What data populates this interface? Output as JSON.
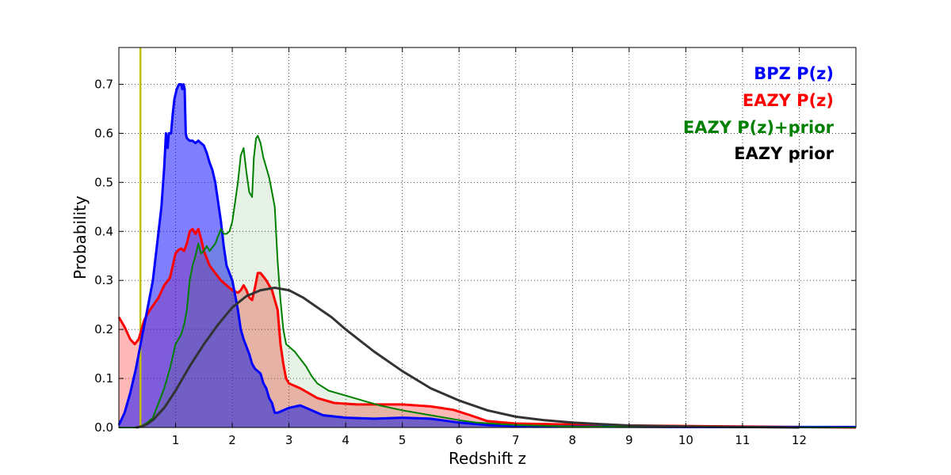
{
  "chart_data": {
    "type": "area",
    "title": "",
    "xlabel": "Redshift z",
    "ylabel": "Probability",
    "xlim": [
      0,
      13
    ],
    "ylim": [
      0,
      0.775
    ],
    "grid": true,
    "legend_position": "top-right",
    "x_ticks": [
      1,
      2,
      3,
      4,
      5,
      6,
      7,
      8,
      9,
      10,
      11,
      12
    ],
    "x_tick_labels": [
      "1",
      "2",
      "3",
      "4",
      "5",
      "6",
      "7",
      "8",
      "9",
      "10",
      "11",
      "12"
    ],
    "y_ticks": [
      0.0,
      0.1,
      0.2,
      0.3,
      0.4,
      0.5,
      0.6,
      0.7
    ],
    "y_tick_labels": [
      "0.0",
      "0.1",
      "0.2",
      "0.3",
      "0.4",
      "0.5",
      "0.6",
      "0.7"
    ],
    "vertical_line": {
      "x": 0.38,
      "color": "#bfbf00"
    },
    "series": [
      {
        "name": "EAZY P(z)",
        "color": "#ff0000",
        "fill": "#ff0000",
        "fill_opacity": 0.28,
        "line_width": 3,
        "points": [
          [
            0,
            0.225
          ],
          [
            0.1,
            0.205
          ],
          [
            0.2,
            0.18
          ],
          [
            0.28,
            0.17
          ],
          [
            0.35,
            0.18
          ],
          [
            0.4,
            0.2
          ],
          [
            0.45,
            0.22
          ],
          [
            0.55,
            0.24
          ],
          [
            0.7,
            0.265
          ],
          [
            0.8,
            0.29
          ],
          [
            0.9,
            0.305
          ],
          [
            0.95,
            0.33
          ],
          [
            1.0,
            0.355
          ],
          [
            1.05,
            0.362
          ],
          [
            1.1,
            0.365
          ],
          [
            1.15,
            0.36
          ],
          [
            1.2,
            0.375
          ],
          [
            1.25,
            0.4
          ],
          [
            1.3,
            0.405
          ],
          [
            1.35,
            0.395
          ],
          [
            1.4,
            0.405
          ],
          [
            1.45,
            0.385
          ],
          [
            1.5,
            0.36
          ],
          [
            1.55,
            0.345
          ],
          [
            1.6,
            0.33
          ],
          [
            1.7,
            0.315
          ],
          [
            1.8,
            0.3
          ],
          [
            1.9,
            0.29
          ],
          [
            2.0,
            0.28
          ],
          [
            2.1,
            0.275
          ],
          [
            2.15,
            0.28
          ],
          [
            2.2,
            0.29
          ],
          [
            2.25,
            0.28
          ],
          [
            2.3,
            0.265
          ],
          [
            2.35,
            0.26
          ],
          [
            2.4,
            0.285
          ],
          [
            2.45,
            0.315
          ],
          [
            2.5,
            0.315
          ],
          [
            2.6,
            0.3
          ],
          [
            2.7,
            0.28
          ],
          [
            2.8,
            0.24
          ],
          [
            2.85,
            0.17
          ],
          [
            2.9,
            0.13
          ],
          [
            2.95,
            0.1
          ],
          [
            3.0,
            0.09
          ],
          [
            3.2,
            0.08
          ],
          [
            3.5,
            0.06
          ],
          [
            3.8,
            0.05
          ],
          [
            4.2,
            0.047
          ],
          [
            5.0,
            0.047
          ],
          [
            5.5,
            0.043
          ],
          [
            5.9,
            0.036
          ],
          [
            6.2,
            0.025
          ],
          [
            6.5,
            0.013
          ],
          [
            7.0,
            0.008
          ],
          [
            8.0,
            0.006
          ],
          [
            9.0,
            0.004
          ],
          [
            10.0,
            0.003
          ],
          [
            11.0,
            0.002
          ],
          [
            12.0,
            0.001
          ],
          [
            13.0,
            0.0
          ]
        ]
      },
      {
        "name": "BPZ P(z)",
        "color": "#0000ff",
        "fill": "#0000ff",
        "fill_opacity": 0.5,
        "line_width": 3,
        "points": [
          [
            0,
            0.005
          ],
          [
            0.1,
            0.03
          ],
          [
            0.2,
            0.07
          ],
          [
            0.3,
            0.12
          ],
          [
            0.4,
            0.18
          ],
          [
            0.5,
            0.24
          ],
          [
            0.6,
            0.3
          ],
          [
            0.7,
            0.4
          ],
          [
            0.75,
            0.45
          ],
          [
            0.8,
            0.53
          ],
          [
            0.83,
            0.6
          ],
          [
            0.86,
            0.57
          ],
          [
            0.88,
            0.6
          ],
          [
            0.92,
            0.6
          ],
          [
            0.95,
            0.64
          ],
          [
            0.98,
            0.67
          ],
          [
            1.02,
            0.69
          ],
          [
            1.06,
            0.7
          ],
          [
            1.1,
            0.7
          ],
          [
            1.12,
            0.69
          ],
          [
            1.14,
            0.7
          ],
          [
            1.16,
            0.69
          ],
          [
            1.18,
            0.6
          ],
          [
            1.2,
            0.59
          ],
          [
            1.25,
            0.585
          ],
          [
            1.3,
            0.585
          ],
          [
            1.35,
            0.58
          ],
          [
            1.4,
            0.585
          ],
          [
            1.45,
            0.58
          ],
          [
            1.5,
            0.575
          ],
          [
            1.55,
            0.56
          ],
          [
            1.6,
            0.54
          ],
          [
            1.65,
            0.525
          ],
          [
            1.7,
            0.5
          ],
          [
            1.75,
            0.46
          ],
          [
            1.8,
            0.42
          ],
          [
            1.85,
            0.37
          ],
          [
            1.9,
            0.33
          ],
          [
            2.0,
            0.3
          ],
          [
            2.05,
            0.27
          ],
          [
            2.1,
            0.24
          ],
          [
            2.15,
            0.2
          ],
          [
            2.2,
            0.18
          ],
          [
            2.3,
            0.15
          ],
          [
            2.35,
            0.13
          ],
          [
            2.4,
            0.12
          ],
          [
            2.5,
            0.11
          ],
          [
            2.55,
            0.09
          ],
          [
            2.6,
            0.08
          ],
          [
            2.65,
            0.06
          ],
          [
            2.7,
            0.05
          ],
          [
            2.75,
            0.03
          ],
          [
            2.8,
            0.03
          ],
          [
            3.0,
            0.04
          ],
          [
            3.2,
            0.045
          ],
          [
            3.4,
            0.035
          ],
          [
            3.6,
            0.025
          ],
          [
            4.0,
            0.02
          ],
          [
            4.5,
            0.018
          ],
          [
            5.0,
            0.02
          ],
          [
            5.5,
            0.018
          ],
          [
            6.0,
            0.01
          ],
          [
            6.5,
            0.005
          ],
          [
            7.0,
            0.003
          ],
          [
            8.0,
            0.002
          ],
          [
            10.0,
            0.001
          ],
          [
            13.0,
            0.001
          ]
        ]
      },
      {
        "name": "EAZY P(z)+prior",
        "color": "#008000",
        "fill": "#008000",
        "fill_opacity": 0.1,
        "line_width": 2,
        "points": [
          [
            0,
            0.0
          ],
          [
            0.3,
            0.0
          ],
          [
            0.4,
            0.003
          ],
          [
            0.5,
            0.01
          ],
          [
            0.6,
            0.02
          ],
          [
            0.7,
            0.05
          ],
          [
            0.8,
            0.08
          ],
          [
            0.9,
            0.12
          ],
          [
            1.0,
            0.17
          ],
          [
            1.1,
            0.19
          ],
          [
            1.15,
            0.21
          ],
          [
            1.2,
            0.24
          ],
          [
            1.25,
            0.3
          ],
          [
            1.3,
            0.33
          ],
          [
            1.35,
            0.35
          ],
          [
            1.4,
            0.375
          ],
          [
            1.45,
            0.355
          ],
          [
            1.5,
            0.36
          ],
          [
            1.55,
            0.37
          ],
          [
            1.6,
            0.36
          ],
          [
            1.7,
            0.375
          ],
          [
            1.75,
            0.39
          ],
          [
            1.8,
            0.405
          ],
          [
            1.85,
            0.395
          ],
          [
            1.9,
            0.395
          ],
          [
            1.95,
            0.4
          ],
          [
            2.0,
            0.42
          ],
          [
            2.05,
            0.46
          ],
          [
            2.1,
            0.5
          ],
          [
            2.15,
            0.555
          ],
          [
            2.2,
            0.57
          ],
          [
            2.25,
            0.52
          ],
          [
            2.3,
            0.48
          ],
          [
            2.35,
            0.47
          ],
          [
            2.38,
            0.55
          ],
          [
            2.42,
            0.59
          ],
          [
            2.45,
            0.595
          ],
          [
            2.5,
            0.58
          ],
          [
            2.55,
            0.55
          ],
          [
            2.6,
            0.53
          ],
          [
            2.65,
            0.51
          ],
          [
            2.7,
            0.48
          ],
          [
            2.75,
            0.45
          ],
          [
            2.8,
            0.34
          ],
          [
            2.85,
            0.26
          ],
          [
            2.9,
            0.2
          ],
          [
            2.95,
            0.17
          ],
          [
            3.0,
            0.165
          ],
          [
            3.1,
            0.155
          ],
          [
            3.2,
            0.14
          ],
          [
            3.3,
            0.125
          ],
          [
            3.4,
            0.105
          ],
          [
            3.5,
            0.09
          ],
          [
            3.7,
            0.075
          ],
          [
            4.0,
            0.065
          ],
          [
            4.3,
            0.055
          ],
          [
            4.6,
            0.045
          ],
          [
            5.0,
            0.035
          ],
          [
            5.5,
            0.025
          ],
          [
            6.0,
            0.015
          ],
          [
            6.3,
            0.01
          ],
          [
            7.0,
            0.005
          ],
          [
            8.0,
            0.002
          ],
          [
            13.0,
            0.0
          ]
        ]
      },
      {
        "name": "EAZY prior",
        "color": "#000000",
        "fill": "none",
        "fill_opacity": 0,
        "line_width": 3,
        "points": [
          [
            0.3,
            0.0
          ],
          [
            0.4,
            0.002
          ],
          [
            0.5,
            0.007
          ],
          [
            0.6,
            0.015
          ],
          [
            0.8,
            0.04
          ],
          [
            1.0,
            0.075
          ],
          [
            1.25,
            0.125
          ],
          [
            1.5,
            0.17
          ],
          [
            1.75,
            0.21
          ],
          [
            2.0,
            0.245
          ],
          [
            2.25,
            0.268
          ],
          [
            2.5,
            0.28
          ],
          [
            2.75,
            0.285
          ],
          [
            3.0,
            0.28
          ],
          [
            3.25,
            0.265
          ],
          [
            3.5,
            0.245
          ],
          [
            3.75,
            0.225
          ],
          [
            4.0,
            0.2
          ],
          [
            4.5,
            0.155
          ],
          [
            5.0,
            0.115
          ],
          [
            5.5,
            0.08
          ],
          [
            6.0,
            0.055
          ],
          [
            6.5,
            0.035
          ],
          [
            7.0,
            0.022
          ],
          [
            7.5,
            0.015
          ],
          [
            8.0,
            0.01
          ],
          [
            8.5,
            0.007
          ],
          [
            9.0,
            0.004
          ],
          [
            10.0,
            0.002
          ],
          [
            11.0,
            0.001
          ],
          [
            12.0,
            0.0
          ]
        ]
      }
    ],
    "legend": [
      {
        "label": "BPZ P(z)",
        "color": "#0000ff"
      },
      {
        "label": "EAZY P(z)",
        "color": "#ff0000"
      },
      {
        "label": "EAZY P(z)+prior",
        "color": "#008000"
      },
      {
        "label": "EAZY prior",
        "color": "#000000"
      }
    ]
  }
}
